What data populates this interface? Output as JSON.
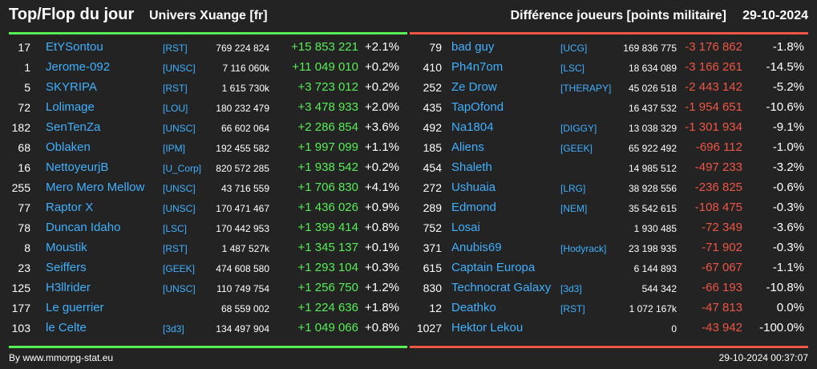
{
  "header": {
    "title": "Top/Flop du jour",
    "subtitle": "Univers Xuange [fr]",
    "metric": "Différence joueurs [points militaire]",
    "date": "29-10-2024"
  },
  "colors": {
    "positive": "#55ee55",
    "negative": "#ee5544",
    "link": "#3fb0ff",
    "background": "#232323"
  },
  "top": [
    {
      "rank": "17",
      "name": "EtYSontou",
      "alliance": "[RST]",
      "points": "769 224 824",
      "diff": "+15 853 221",
      "pct": "+2.1%"
    },
    {
      "rank": "1",
      "name": "Jerome-092",
      "alliance": "[UNSC]",
      "points": "7 116 060k",
      "diff": "+11 049 010",
      "pct": "+0.2%"
    },
    {
      "rank": "5",
      "name": "SKYRIPA",
      "alliance": "[RST]",
      "points": "1 615 730k",
      "diff": "+3 723 012",
      "pct": "+0.2%"
    },
    {
      "rank": "72",
      "name": "Lolimage",
      "alliance": "[LOU]",
      "points": "180 232 479",
      "diff": "+3 478 933",
      "pct": "+2.0%"
    },
    {
      "rank": "182",
      "name": "SenTenZa",
      "alliance": "[UNSC]",
      "points": "66 602 064",
      "diff": "+2 286 854",
      "pct": "+3.6%"
    },
    {
      "rank": "68",
      "name": "Oblaken",
      "alliance": "[IPM]",
      "points": "192 455 582",
      "diff": "+1 997 099",
      "pct": "+1.1%"
    },
    {
      "rank": "16",
      "name": "NettoyeurjB",
      "alliance": "[U_Corp]",
      "points": "820 572 285",
      "diff": "+1 938 542",
      "pct": "+0.2%"
    },
    {
      "rank": "255",
      "name": "Mero Mero Mellow",
      "alliance": "[UNSC]",
      "points": "43 716 559",
      "diff": "+1 706 830",
      "pct": "+4.1%"
    },
    {
      "rank": "77",
      "name": "Raptor X",
      "alliance": "[UNSC]",
      "points": "170 471 467",
      "diff": "+1 436 026",
      "pct": "+0.9%"
    },
    {
      "rank": "78",
      "name": "Duncan Idaho",
      "alliance": "[LSC]",
      "points": "170 442 953",
      "diff": "+1 399 414",
      "pct": "+0.8%"
    },
    {
      "rank": "8",
      "name": "Moustik",
      "alliance": "[RST]",
      "points": "1 487 527k",
      "diff": "+1 345 137",
      "pct": "+0.1%"
    },
    {
      "rank": "23",
      "name": "Seiffers",
      "alliance": "[GEEK]",
      "points": "474 608 580",
      "diff": "+1 293 104",
      "pct": "+0.3%"
    },
    {
      "rank": "125",
      "name": "H3llrider",
      "alliance": "[UNSC]",
      "points": "110 749 754",
      "diff": "+1 256 750",
      "pct": "+1.2%"
    },
    {
      "rank": "177",
      "name": "Le guerrier",
      "alliance": "",
      "points": "68 559 002",
      "diff": "+1 224 636",
      "pct": "+1.8%"
    },
    {
      "rank": "103",
      "name": "le Celte",
      "alliance": "[3d3]",
      "points": "134 497 904",
      "diff": "+1 049 066",
      "pct": "+0.8%"
    }
  ],
  "flop": [
    {
      "rank": "79",
      "name": "bad guy",
      "alliance": "[UCG]",
      "points": "169 836 775",
      "diff": "-3 176 862",
      "pct": "-1.8%"
    },
    {
      "rank": "410",
      "name": "Ph4n7om",
      "alliance": "[LSC]",
      "points": "18 634 089",
      "diff": "-3 166 261",
      "pct": "-14.5%"
    },
    {
      "rank": "252",
      "name": "Ze Drow",
      "alliance": "[THERAPY]",
      "points": "45 026 518",
      "diff": "-2 443 142",
      "pct": "-5.2%"
    },
    {
      "rank": "435",
      "name": "TapOfond",
      "alliance": "",
      "points": "16 437 532",
      "diff": "-1 954 651",
      "pct": "-10.6%"
    },
    {
      "rank": "492",
      "name": "Na1804",
      "alliance": "[DIGGY]",
      "points": "13 038 329",
      "diff": "-1 301 934",
      "pct": "-9.1%"
    },
    {
      "rank": "185",
      "name": "Aliens",
      "alliance": "[GEEK]",
      "points": "65 922 492",
      "diff": "-696 112",
      "pct": "-1.0%"
    },
    {
      "rank": "454",
      "name": "Shaleth",
      "alliance": "",
      "points": "14 985 512",
      "diff": "-497 233",
      "pct": "-3.2%"
    },
    {
      "rank": "272",
      "name": "Ushuaia",
      "alliance": "[LRG]",
      "points": "38 928 556",
      "diff": "-236 825",
      "pct": "-0.6%"
    },
    {
      "rank": "289",
      "name": "Edmond",
      "alliance": "[NEM]",
      "points": "35 542 615",
      "diff": "-108 475",
      "pct": "-0.3%"
    },
    {
      "rank": "752",
      "name": "Losai",
      "alliance": "",
      "points": "1 930 485",
      "diff": "-72 349",
      "pct": "-3.6%"
    },
    {
      "rank": "371",
      "name": "Anubis69",
      "alliance": "[Hodyrack]",
      "points": "23 198 935",
      "diff": "-71 902",
      "pct": "-0.3%"
    },
    {
      "rank": "615",
      "name": "Captain Europa",
      "alliance": "",
      "points": "6 144 893",
      "diff": "-67 067",
      "pct": "-1.1%"
    },
    {
      "rank": "830",
      "name": "Technocrat Galaxy",
      "alliance": "[3d3]",
      "points": "544 342",
      "diff": "-66 193",
      "pct": "-10.8%"
    },
    {
      "rank": "12",
      "name": "Deathko",
      "alliance": "[RST]",
      "points": "1 072 167k",
      "diff": "-47 813",
      "pct": "0.0%"
    },
    {
      "rank": "1027",
      "name": "Hektor Lekou",
      "alliance": "",
      "points": "0",
      "diff": "-43 942",
      "pct": "-100.0%"
    }
  ],
  "footer": {
    "source": "By www.mmorpg-stat.eu",
    "timestamp": "29-10-2024 00:37:07"
  }
}
